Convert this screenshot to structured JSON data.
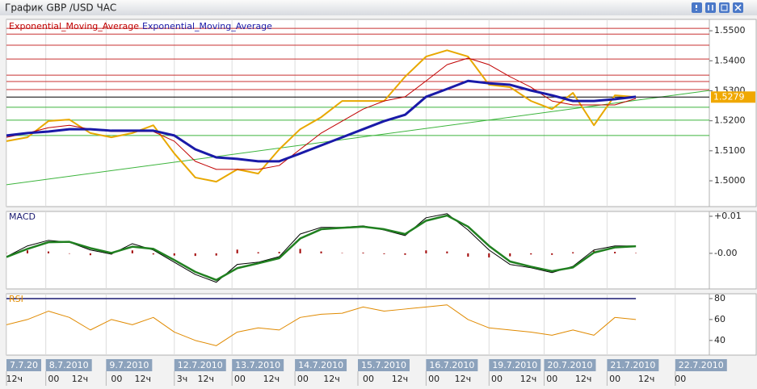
{
  "window": {
    "title": "График GBP /USD ЧАС"
  },
  "chart_data": [
    {
      "type": "line",
      "legend": "top-left",
      "x": [
        0,
        8,
        16,
        24,
        32,
        40,
        48,
        56,
        64,
        72,
        80,
        88,
        96,
        104,
        112,
        120,
        128,
        136,
        144,
        152,
        160,
        168,
        176,
        184,
        192,
        200,
        208,
        216,
        224,
        232,
        240
      ],
      "xlim": [
        0,
        268
      ],
      "xticks": [
        {
          "value": 0,
          "label": "7.7.20"
        },
        {
          "value": 15,
          "label": "8.7.2010"
        },
        {
          "value": 38,
          "label": "9.7.2010"
        },
        {
          "value": 64,
          "label": "12.7.2010"
        },
        {
          "value": 86,
          "label": "13.7.2010"
        },
        {
          "value": 110,
          "label": "14.7.2010"
        },
        {
          "value": 134,
          "label": "15.7.2010"
        },
        {
          "value": 160,
          "label": "16.7.2010"
        },
        {
          "value": 184,
          "label": "19.7.2010"
        },
        {
          "value": 205,
          "label": "20.7.2010"
        },
        {
          "value": 229,
          "label": "21.7.2010"
        },
        {
          "value": 255,
          "label": "22.7.2010"
        }
      ],
      "xticks_hours": [
        {
          "value": 3,
          "label": "12ч"
        },
        {
          "value": 18,
          "label": "00"
        },
        {
          "value": 28,
          "label": "12ч"
        },
        {
          "value": 42,
          "label": "00"
        },
        {
          "value": 52,
          "label": "12ч"
        },
        {
          "value": 67,
          "label": "3ч"
        },
        {
          "value": 76,
          "label": "12ч"
        },
        {
          "value": 89,
          "label": "00"
        },
        {
          "value": 101,
          "label": "12ч"
        },
        {
          "value": 113,
          "label": "00"
        },
        {
          "value": 124,
          "label": "12ч"
        },
        {
          "value": 138,
          "label": "00"
        },
        {
          "value": 150,
          "label": "12ч"
        },
        {
          "value": 163,
          "label": "00"
        },
        {
          "value": 174,
          "label": "12ч"
        },
        {
          "value": 187,
          "label": "00"
        },
        {
          "value": 199,
          "label": "12ч"
        },
        {
          "value": 208,
          "label": "00"
        },
        {
          "value": 220,
          "label": "12ч"
        },
        {
          "value": 232,
          "label": "00"
        },
        {
          "value": 244,
          "label": "12ч"
        },
        {
          "value": 257,
          "label": "00"
        }
      ],
      "ylim": [
        1.4914,
        1.5538
      ],
      "yticks": [
        {
          "value": 1.5,
          "label": "1.5000"
        },
        {
          "value": 1.51,
          "label": "1.5100"
        },
        {
          "value": 1.52,
          "label": "1.5200"
        },
        {
          "value": 1.53,
          "label": "1.5300"
        },
        {
          "value": 1.54,
          "label": "1.5400"
        },
        {
          "value": 1.55,
          "label": "1.5500"
        }
      ],
      "current_price": 1.5279,
      "levels": [
        {
          "color": "#c83232",
          "values": [
            1.5508,
            1.5489,
            1.5452,
            1.5406,
            1.5352,
            1.5331,
            1.5304
          ]
        },
        {
          "color": "#3cb43c",
          "values": [
            1.5245,
            1.5202,
            1.5151
          ]
        }
      ],
      "trend_line": {
        "color": "#3cb43c",
        "x": [
          0,
          268
        ],
        "values": [
          1.4987,
          1.5301
        ]
      },
      "series": [
        {
          "color": "#e8a800",
          "width": 2,
          "values": [
            1.5132,
            1.5145,
            1.5199,
            1.5204,
            1.5159,
            1.5145,
            1.5159,
            1.5185,
            1.5091,
            1.5011,
            1.4997,
            1.5038,
            1.5024,
            1.5105,
            1.5172,
            1.5212,
            1.5266,
            1.5266,
            1.5266,
            1.5347,
            1.5414,
            1.5435,
            1.5414,
            1.532,
            1.5312,
            1.5266,
            1.5239,
            1.5293,
            1.5185,
            1.5285,
            1.5279
          ]
        },
        {
          "name": "Exponential_Moving_Average",
          "color": "#c00000",
          "width": 1,
          "values": [
            1.5145,
            1.5159,
            1.5177,
            1.5185,
            1.5172,
            1.5164,
            1.5164,
            1.5164,
            1.5132,
            1.5065,
            1.5038,
            1.5038,
            1.5038,
            1.5051,
            1.5105,
            1.5159,
            1.5199,
            1.5239,
            1.5266,
            1.528,
            1.5333,
            1.5387,
            1.5409,
            1.5387,
            1.5347,
            1.5312,
            1.5266,
            1.5253,
            1.5253,
            1.5253,
            1.5274
          ]
        },
        {
          "name": "Exponential_Moving_Average",
          "color": "#1a1aa8",
          "width": 3,
          "values": [
            1.5151,
            1.5159,
            1.5164,
            1.5172,
            1.5172,
            1.5167,
            1.5167,
            1.5167,
            1.5151,
            1.5105,
            1.5078,
            1.5073,
            1.5065,
            1.5065,
            1.5091,
            1.5118,
            1.5145,
            1.5172,
            1.5199,
            1.522,
            1.528,
            1.5306,
            1.5333,
            1.5325,
            1.532,
            1.5301,
            1.5285,
            1.5266,
            1.5266,
            1.5272,
            1.528
          ]
        }
      ]
    },
    {
      "type": "line",
      "title": "MACD",
      "title_color": "#1a1a70",
      "ylim": [
        -0.0096,
        0.0113
      ],
      "yticks": [
        {
          "value": 0.01,
          "label": "+0.01"
        },
        {
          "value": 0,
          "label": "-0.00"
        }
      ],
      "series": [
        {
          "type": "bar",
          "color": "#a00000",
          "values": [
            0.0001,
            0.0008,
            0.0005,
            -0.0001,
            -0.0005,
            -0.0003,
            0.0008,
            -0.0003,
            -0.0006,
            -0.0007,
            -0.0006,
            0.001,
            0.0003,
            0.0004,
            0.0012,
            0.0005,
            0.0001,
            0.0002,
            -0.0002,
            -0.0004,
            0.0008,
            0.0005,
            -0.0009,
            -0.0011,
            -0.0008,
            -0.0003,
            -0.0004,
            0.0003,
            0.0007,
            0.0004,
            0.0001
          ]
        },
        {
          "color": "#000000",
          "width": 1,
          "values": [
            -0.0009,
            0.002,
            0.0035,
            0.003,
            0.0009,
            -0.0002,
            0.0026,
            0.0009,
            -0.0024,
            -0.0057,
            -0.0078,
            -0.003,
            -0.0024,
            -0.0009,
            0.0052,
            0.007,
            0.007,
            0.0074,
            0.0063,
            0.0048,
            0.0096,
            0.0107,
            0.0063,
            0.0009,
            -0.003,
            -0.0039,
            -0.0052,
            -0.0035,
            0.0009,
            0.002,
            0.002
          ]
        },
        {
          "color": "#208020",
          "width": 2.5,
          "values": [
            -0.001,
            0.0012,
            0.003,
            0.0031,
            0.0014,
            0.0001,
            0.0018,
            0.0012,
            -0.0018,
            -0.005,
            -0.0072,
            -0.004,
            -0.0027,
            -0.0013,
            0.004,
            0.0065,
            0.0069,
            0.0072,
            0.0065,
            0.0052,
            0.0088,
            0.0102,
            0.0072,
            0.002,
            -0.0022,
            -0.0036,
            -0.0048,
            -0.0038,
            0.0002,
            0.0016,
            0.0019
          ]
        }
      ]
    },
    {
      "type": "line",
      "title": "RSI",
      "title_color": "#e08a00",
      "ylim": [
        26,
        84.6
      ],
      "yticks": [
        80,
        60,
        40
      ],
      "level_lines": {
        "color": "#1a1a70",
        "values": [
          80
        ]
      },
      "series": [
        {
          "color": "#e08a00",
          "width": 1,
          "values": [
            55,
            60,
            68,
            62,
            50,
            60,
            55,
            62,
            48,
            40,
            35,
            48,
            52,
            50,
            62,
            65,
            66,
            72,
            68,
            70,
            72,
            74,
            60,
            52,
            50,
            48,
            45,
            50,
            45,
            62,
            60
          ]
        }
      ]
    }
  ]
}
